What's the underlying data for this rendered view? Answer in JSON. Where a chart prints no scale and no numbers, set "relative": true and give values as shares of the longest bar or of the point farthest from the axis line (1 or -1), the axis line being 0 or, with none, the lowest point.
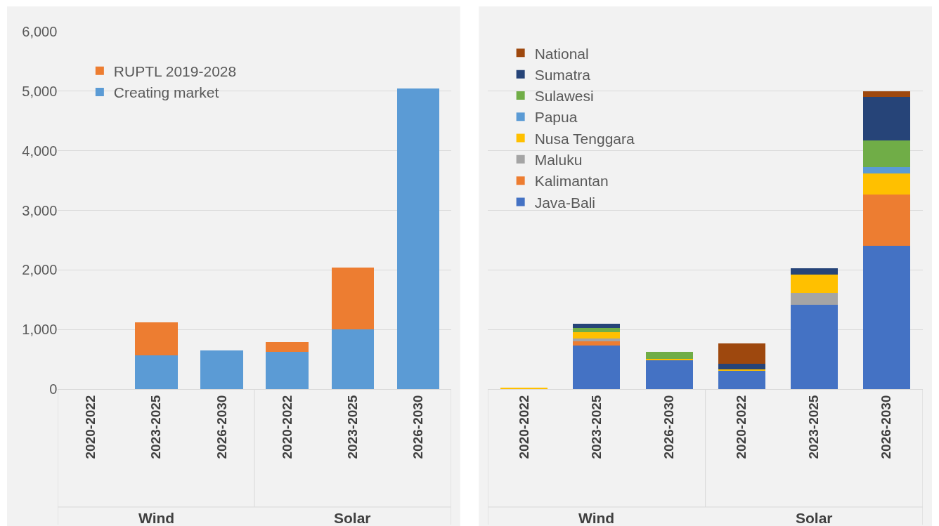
{
  "chart_data": [
    {
      "type": "bar",
      "stacked": true,
      "categories": [
        "2020-2022",
        "2023-2025",
        "2026-2030",
        "2020-2022",
        "2023-2025",
        "2026-2030"
      ],
      "series": [
        {
          "name": "Creating market",
          "color": "#5b9bd5",
          "values": [
            0,
            565,
            650,
            630,
            1005,
            5040
          ]
        },
        {
          "name": "RUPTL 2019-2028",
          "color": "#ed7d31",
          "values": [
            0,
            553,
            0,
            160,
            1040,
            0
          ]
        }
      ],
      "ylim": [
        0,
        6000
      ],
      "yticks": [
        0,
        {
          "value": 1000,
          "label": "1,000"
        },
        {
          "value": 2000,
          "label": "2,000"
        },
        {
          "value": 3000,
          "label": "3,000"
        },
        {
          "value": 4000,
          "label": "4,000"
        },
        {
          "value": 5000,
          "label": "5,000"
        },
        {
          "value": 6000,
          "label": "6,000"
        }
      ],
      "grid": "y",
      "legend": "top left",
      "annotations": [
        "Wind",
        "Solar"
      ]
    },
    {
      "type": "bar",
      "stacked": true,
      "relative": true,
      "categories": [
        "2020-2022",
        "2023-2025",
        "2026-2030",
        "2020-2022",
        "2023-2025",
        "2026-2030"
      ],
      "series": [
        {
          "name": "Java-Bali",
          "color": "#4472c4",
          "values": [
            0,
            0.147,
            0.097,
            0.062,
            0.282,
            0.48
          ]
        },
        {
          "name": "Kalimantan",
          "color": "#ed7d31",
          "values": [
            0,
            0.014,
            0,
            0,
            0,
            0.174
          ]
        },
        {
          "name": "Maluku",
          "color": "#a5a5a5",
          "values": [
            0,
            0.009,
            0,
            0,
            0.041,
            0
          ]
        },
        {
          "name": "Nusa Tenggara",
          "color": "#ffc000",
          "values": [
            0.003,
            0.02,
            0.004,
            0.003,
            0.061,
            0.069
          ]
        },
        {
          "name": "Papua",
          "color": "#5b9bd5",
          "values": [
            0,
            0,
            0,
            0,
            0,
            0.022
          ]
        },
        {
          "name": "Sulawesi",
          "color": "#70ad47",
          "values": [
            0,
            0.014,
            0.025,
            0,
            0,
            0.09
          ]
        },
        {
          "name": "Sumatra",
          "color": "#264478",
          "values": [
            0,
            0.016,
            0,
            0.02,
            0.021,
            0.145
          ]
        },
        {
          "name": "National",
          "color": "#9e480e",
          "values": [
            0,
            0,
            0,
            0.068,
            0,
            0.02
          ]
        }
      ],
      "grid": "y",
      "legend": "top left",
      "annotations": [
        "Wind",
        "Solar"
      ]
    }
  ]
}
